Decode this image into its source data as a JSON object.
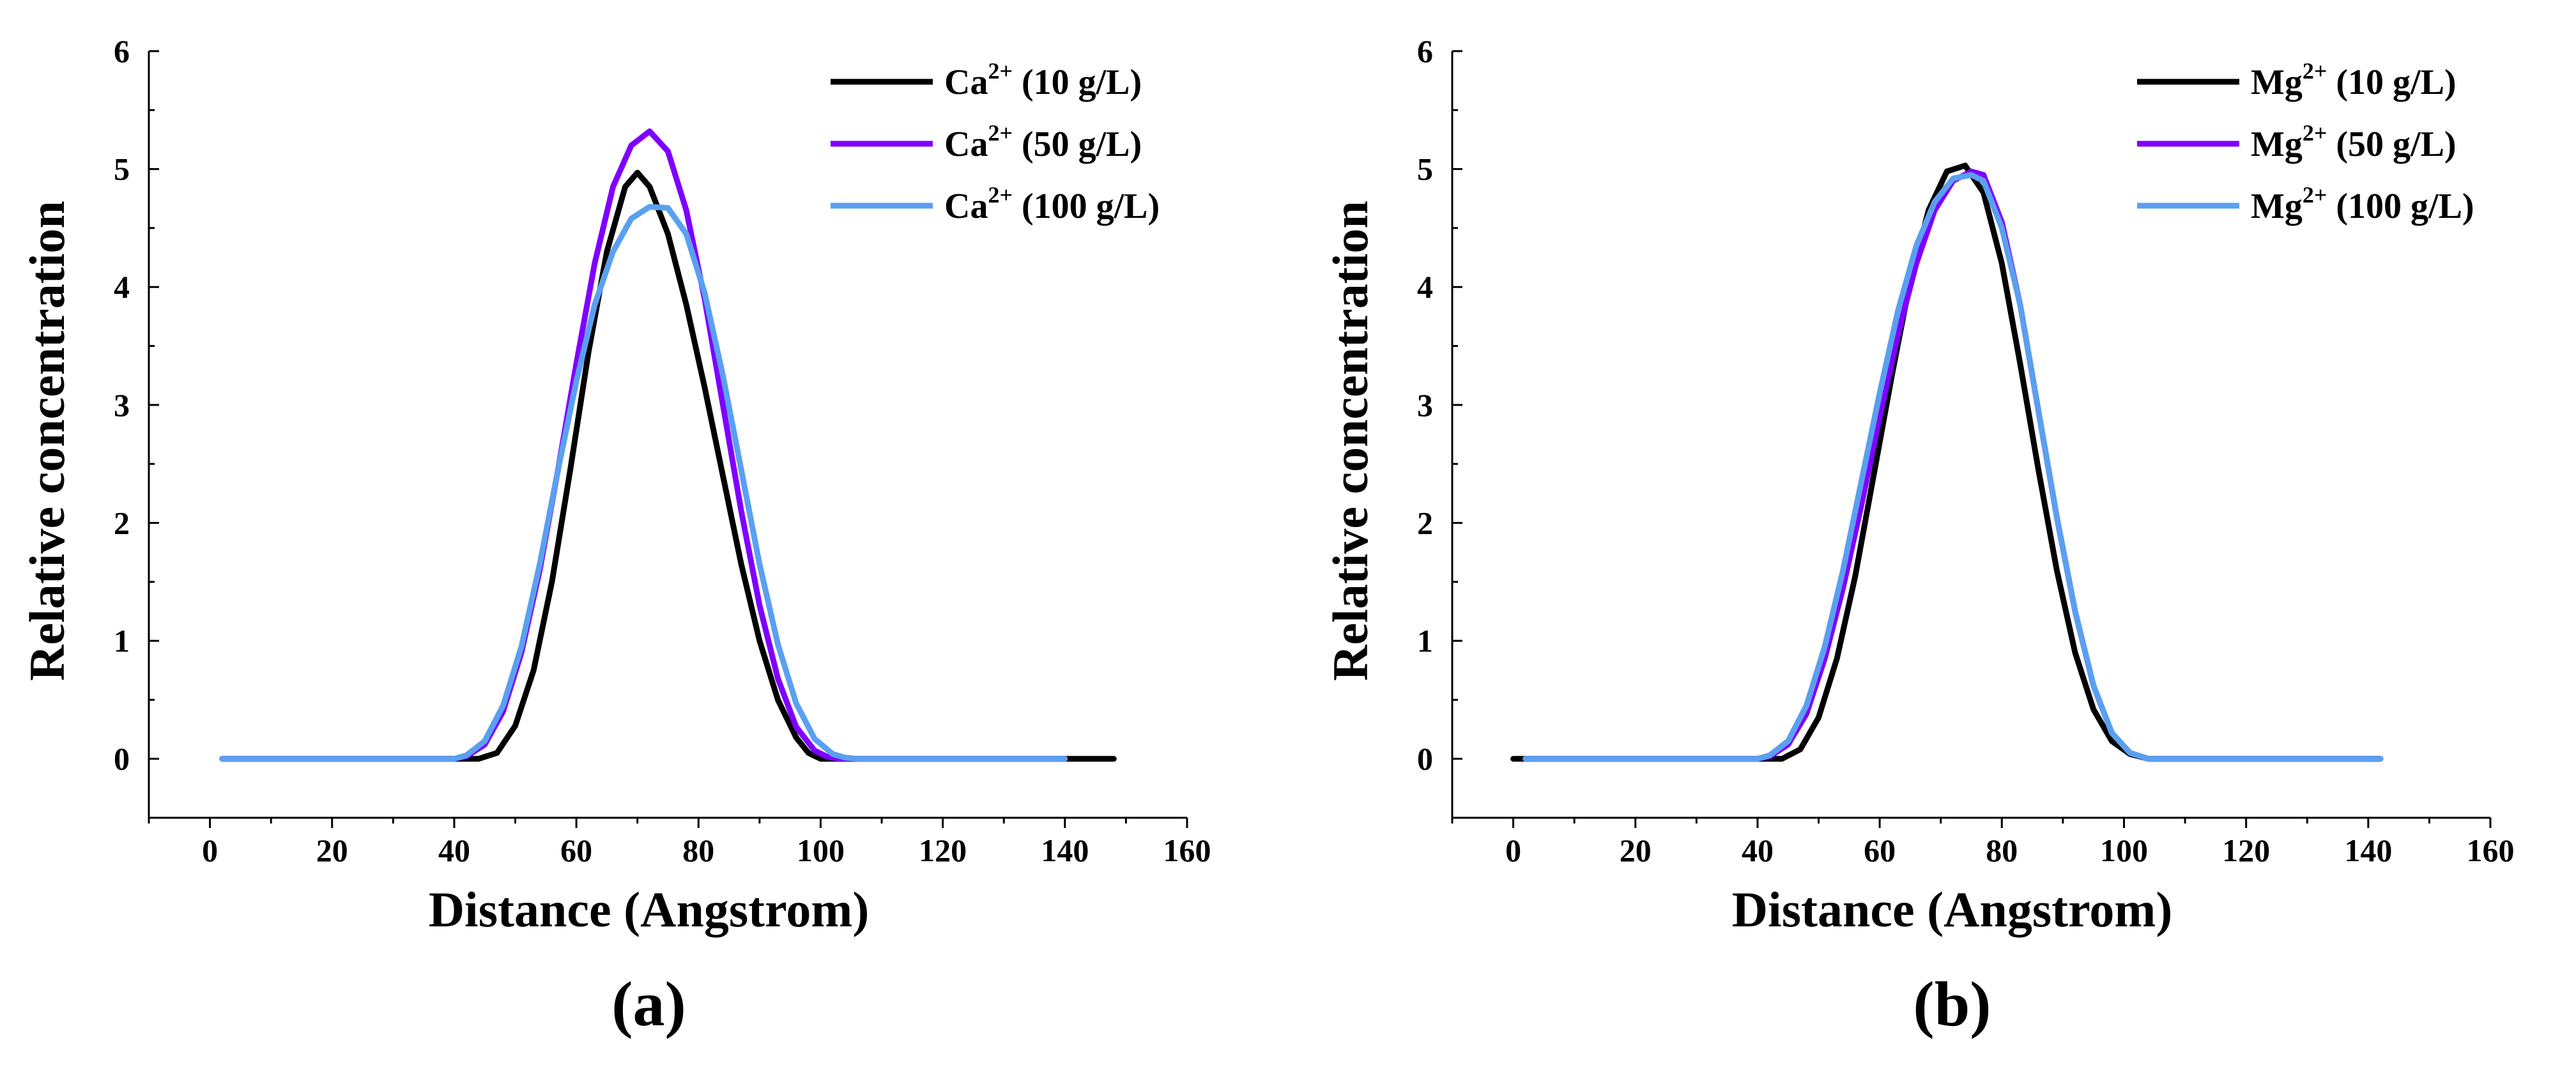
{
  "chart_data": [
    {
      "type": "line",
      "panel_label": "(a)",
      "xlabel": "Distance (Angstrom)",
      "ylabel": "Relative concentration",
      "xlim": [
        -10,
        160
      ],
      "ylim": [
        -0.5,
        6
      ],
      "xticks": [
        0,
        20,
        40,
        60,
        80,
        100,
        120,
        140,
        160
      ],
      "yticks": [
        0,
        1,
        2,
        3,
        4,
        5,
        6
      ],
      "legend_position": "top-right",
      "series": [
        {
          "name": "Ca2+ (10 g/L)",
          "legend": {
            "ion": "Ca",
            "charge": "2+",
            "conc": " (10 g/L)"
          },
          "color": "#000000",
          "x": [
            2,
            10,
            20,
            30,
            40,
            44,
            47,
            50,
            53,
            56,
            59,
            62,
            65,
            68,
            70,
            72,
            75,
            78,
            81,
            84,
            87,
            90,
            93,
            96,
            98,
            100,
            102,
            105,
            110,
            120,
            130,
            140,
            148
          ],
          "y": [
            0,
            0,
            0,
            0,
            0,
            0,
            0.05,
            0.28,
            0.75,
            1.5,
            2.45,
            3.45,
            4.3,
            4.85,
            4.97,
            4.85,
            4.45,
            3.85,
            3.15,
            2.4,
            1.65,
            1.0,
            0.5,
            0.18,
            0.05,
            0,
            0,
            0,
            0,
            0,
            0,
            0,
            0
          ]
        },
        {
          "name": "Ca2+ (50 g/L)",
          "legend": {
            "ion": "Ca",
            "charge": "2+",
            "conc": " (50 g/L)"
          },
          "color": "#7f00ff",
          "x": [
            2,
            10,
            20,
            30,
            40,
            42,
            45,
            48,
            51,
            54,
            57,
            60,
            63,
            66,
            69,
            72,
            75,
            78,
            81,
            84,
            87,
            90,
            93,
            96,
            99,
            101,
            103,
            105,
            110,
            120,
            130,
            140
          ],
          "y": [
            0,
            0,
            0,
            0,
            0,
            0.02,
            0.12,
            0.4,
            0.9,
            1.6,
            2.45,
            3.35,
            4.2,
            4.85,
            5.2,
            5.32,
            5.15,
            4.65,
            3.9,
            3.0,
            2.1,
            1.3,
            0.68,
            0.27,
            0.07,
            0.02,
            0,
            0,
            0,
            0,
            0,
            0
          ]
        },
        {
          "name": "Ca2+ (100 g/L)",
          "legend": {
            "ion": "Ca",
            "charge": "2+",
            "conc": " (100 g/L)"
          },
          "color": "#5aa0f0",
          "x": [
            2,
            10,
            20,
            30,
            40,
            42,
            45,
            48,
            51,
            54,
            57,
            60,
            63,
            66,
            69,
            72,
            75,
            78,
            81,
            84,
            87,
            90,
            93,
            96,
            99,
            102,
            104,
            106,
            110,
            120,
            130,
            140
          ],
          "y": [
            0,
            0,
            0,
            0,
            0,
            0.03,
            0.15,
            0.45,
            0.95,
            1.65,
            2.45,
            3.2,
            3.85,
            4.3,
            4.58,
            4.68,
            4.67,
            4.45,
            3.95,
            3.25,
            2.45,
            1.65,
            0.97,
            0.47,
            0.17,
            0.04,
            0.01,
            0,
            0,
            0,
            0,
            0
          ]
        }
      ]
    },
    {
      "type": "line",
      "panel_label": "(b)",
      "xlabel": "Distance (Angstrom)",
      "ylabel": "Relative concentration",
      "xlim": [
        -10,
        160
      ],
      "ylim": [
        -0.5,
        6
      ],
      "xticks": [
        0,
        20,
        40,
        60,
        80,
        100,
        120,
        140,
        160
      ],
      "yticks": [
        0,
        1,
        2,
        3,
        4,
        5,
        6
      ],
      "legend_position": "top-right",
      "series": [
        {
          "name": "Mg2+ (10 g/L)",
          "legend": {
            "ion": "Mg",
            "charge": "2+",
            "conc": " (10 g/L)"
          },
          "color": "#000000",
          "x": [
            0,
            10,
            20,
            30,
            40,
            44,
            47,
            50,
            53,
            56,
            59,
            62,
            65,
            68,
            71,
            74,
            77,
            80,
            83,
            86,
            89,
            92,
            95,
            98,
            101,
            104,
            110,
            120,
            130,
            142
          ],
          "y": [
            0,
            0,
            0,
            0,
            0,
            0,
            0.08,
            0.35,
            0.85,
            1.55,
            2.4,
            3.25,
            4.05,
            4.65,
            4.98,
            5.03,
            4.8,
            4.2,
            3.35,
            2.45,
            1.6,
            0.9,
            0.42,
            0.15,
            0.04,
            0,
            0,
            0,
            0,
            0
          ]
        },
        {
          "name": "Mg2+ (50 g/L)",
          "legend": {
            "ion": "Mg",
            "charge": "2+",
            "conc": " (50 g/L)"
          },
          "color": "#7f00ff",
          "x": [
            2,
            10,
            20,
            30,
            40,
            42,
            45,
            48,
            51,
            54,
            57,
            60,
            63,
            66,
            69,
            72,
            75,
            77,
            80,
            83,
            86,
            89,
            92,
            95,
            98,
            101,
            104,
            110,
            120,
            130,
            142
          ],
          "y": [
            0,
            0,
            0,
            0,
            0,
            0.02,
            0.12,
            0.38,
            0.85,
            1.45,
            2.15,
            2.9,
            3.6,
            4.2,
            4.65,
            4.9,
            4.98,
            4.95,
            4.55,
            3.85,
            2.95,
            2.05,
            1.25,
            0.62,
            0.22,
            0.05,
            0,
            0,
            0,
            0,
            0
          ]
        },
        {
          "name": "Mg2+ (100 g/L)",
          "legend": {
            "ion": "Mg",
            "charge": "2+",
            "conc": " (100 g/L)"
          },
          "color": "#5aa0f0",
          "x": [
            2,
            10,
            20,
            30,
            40,
            42,
            45,
            48,
            51,
            54,
            57,
            60,
            63,
            66,
            69,
            72,
            75,
            77,
            80,
            83,
            86,
            89,
            92,
            95,
            98,
            101,
            104,
            110,
            120,
            130,
            142
          ],
          "y": [
            0,
            0,
            0,
            0,
            0,
            0.03,
            0.15,
            0.45,
            0.95,
            1.6,
            2.35,
            3.1,
            3.8,
            4.35,
            4.72,
            4.92,
            4.95,
            4.9,
            4.5,
            3.85,
            2.95,
            2.05,
            1.25,
            0.62,
            0.22,
            0.05,
            0,
            0,
            0,
            0,
            0
          ]
        }
      ]
    }
  ]
}
